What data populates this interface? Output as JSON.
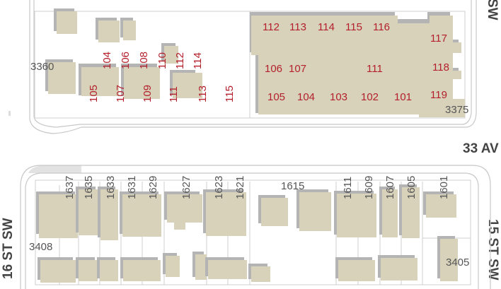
{
  "colors": {
    "building": "#d8d2bb",
    "building_shadow": "#b4b4b4",
    "unit_label": "#b3202c",
    "address_label": "#555555",
    "street_label": "#444444",
    "road_edge": "#c8c8c8"
  },
  "streets": {
    "avenue_33": "33 AV",
    "st_16": "16 ST SW",
    "st_15": "15 ST SW",
    "st_15_top": "SW"
  },
  "north_block": {
    "west_parcel": {
      "address": "3360",
      "units": [
        "104",
        "106",
        "108",
        "110",
        "112",
        "114",
        "105",
        "107",
        "109",
        "111",
        "113",
        "115"
      ]
    },
    "east_parcel": {
      "address": "3375",
      "units": [
        "112",
        "113",
        "114",
        "115",
        "116",
        "117",
        "106",
        "107",
        "111",
        "118",
        "105",
        "104",
        "103",
        "102",
        "101",
        "119"
      ]
    }
  },
  "south_block": {
    "addresses": [
      "1637",
      "1635",
      "1633",
      "1631",
      "1629",
      "1627",
      "1623",
      "1621",
      "1615",
      "1611",
      "1609",
      "1607",
      "1605",
      "1601"
    ],
    "corner_west": "3408",
    "corner_east": "3405"
  }
}
